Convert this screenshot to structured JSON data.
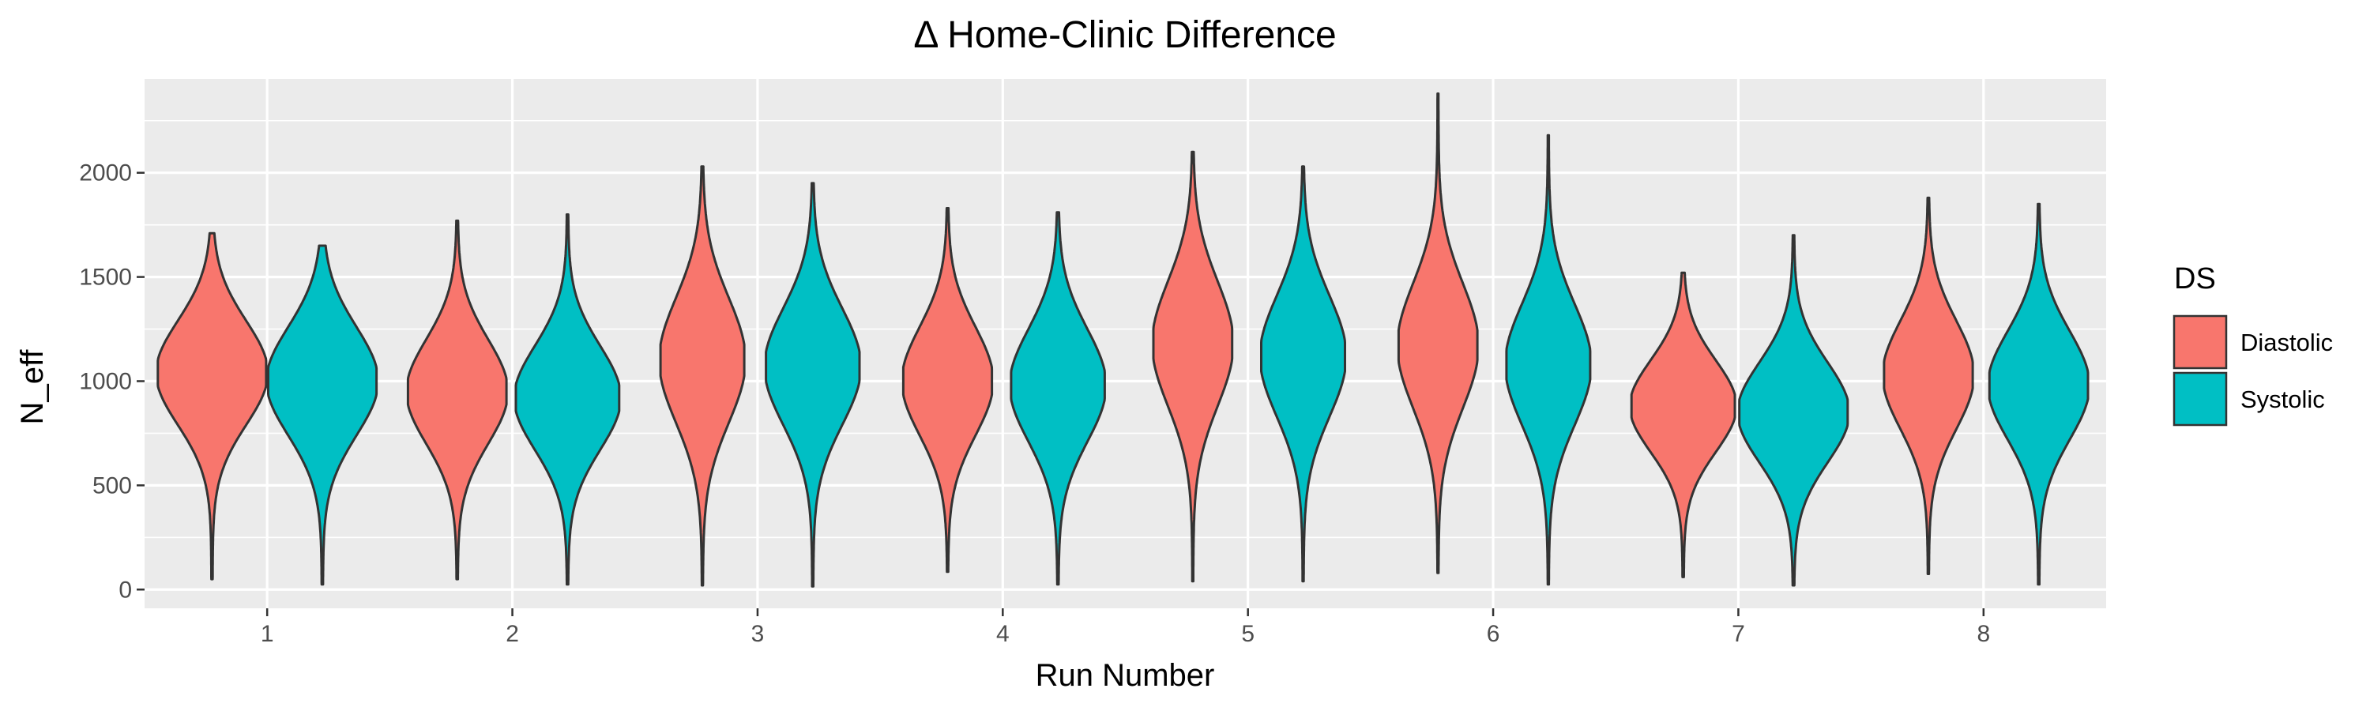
{
  "chart_data": {
    "type": "violin",
    "title": "Δ Home-Clinic Difference",
    "xlabel": "Run Number",
    "ylabel": "N_eff",
    "categories": [
      "1",
      "2",
      "3",
      "4",
      "5",
      "6",
      "7",
      "8"
    ],
    "y_ticks": [
      0,
      500,
      1000,
      1500,
      2000
    ],
    "ylim": [
      -90,
      2450
    ],
    "grid": true,
    "legend": {
      "title": "DS",
      "position": "right",
      "entries": [
        {
          "label": "Diastolic",
          "color": "#F8766D"
        },
        {
          "label": "Systolic",
          "color": "#00BFC4"
        }
      ]
    },
    "series": [
      {
        "name": "Diastolic",
        "color": "#F8766D",
        "violins": [
          {
            "min": 50,
            "max": 1710,
            "center": 1040,
            "half_width": 0.22,
            "spread": 250
          },
          {
            "min": 50,
            "max": 1770,
            "center": 950,
            "half_width": 0.2,
            "spread": 250
          },
          {
            "min": 20,
            "max": 2030,
            "center": 1100,
            "half_width": 0.17,
            "spread": 300
          },
          {
            "min": 85,
            "max": 1830,
            "center": 1000,
            "half_width": 0.18,
            "spread": 260
          },
          {
            "min": 40,
            "max": 2100,
            "center": 1180,
            "half_width": 0.16,
            "spread": 300
          },
          {
            "min": 80,
            "max": 2380,
            "center": 1170,
            "half_width": 0.16,
            "spread": 300
          },
          {
            "min": 60,
            "max": 1520,
            "center": 880,
            "half_width": 0.21,
            "spread": 220
          },
          {
            "min": 75,
            "max": 1880,
            "center": 1030,
            "half_width": 0.18,
            "spread": 260
          }
        ]
      },
      {
        "name": "Systolic",
        "color": "#00BFC4",
        "violins": [
          {
            "min": 25,
            "max": 1650,
            "center": 1000,
            "half_width": 0.22,
            "spread": 260
          },
          {
            "min": 25,
            "max": 1800,
            "center": 920,
            "half_width": 0.21,
            "spread": 250
          },
          {
            "min": 15,
            "max": 1950,
            "center": 1070,
            "half_width": 0.19,
            "spread": 280
          },
          {
            "min": 25,
            "max": 1810,
            "center": 980,
            "half_width": 0.19,
            "spread": 270
          },
          {
            "min": 40,
            "max": 2030,
            "center": 1120,
            "half_width": 0.17,
            "spread": 290
          },
          {
            "min": 25,
            "max": 2180,
            "center": 1080,
            "half_width": 0.17,
            "spread": 290
          },
          {
            "min": 20,
            "max": 1700,
            "center": 850,
            "half_width": 0.22,
            "spread": 240
          },
          {
            "min": 25,
            "max": 1850,
            "center": 980,
            "half_width": 0.2,
            "spread": 260
          }
        ]
      }
    ]
  }
}
